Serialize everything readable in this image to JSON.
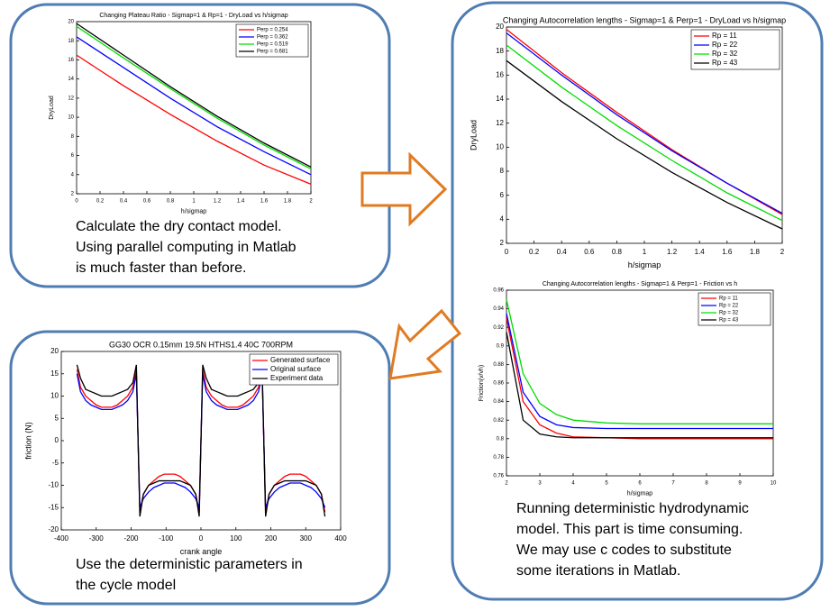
{
  "chart_data": [
    {
      "type": "line",
      "title": "Changing Plateau Ratio - Sigmap=1 & Rp=1 - DryLoad vs h/sigmap",
      "x_label": "h/sigmap",
      "y_label": "DryLoad",
      "x": [
        0,
        0.4,
        0.8,
        1.2,
        1.6,
        2
      ],
      "xlim": [
        0,
        2
      ],
      "xticks": [
        0,
        0.2,
        0.4,
        0.6,
        0.8,
        1,
        1.2,
        1.4,
        1.6,
        1.8,
        2
      ],
      "ylim": [
        2,
        20
      ],
      "yticks": [
        2,
        4,
        6,
        8,
        10,
        12,
        14,
        16,
        18,
        20
      ],
      "legend": "upper right",
      "series": [
        {
          "name": "Perp = 0.254",
          "color": "#ff0000",
          "values": [
            16.5,
            13.3,
            10.3,
            7.5,
            5.0,
            3.0
          ]
        },
        {
          "name": "Perp = 0.362",
          "color": "#0000ff",
          "values": [
            18.4,
            15.2,
            12.0,
            9.0,
            6.4,
            4.0
          ]
        },
        {
          "name": "Perp = 0.519",
          "color": "#00dd00",
          "values": [
            19.5,
            16.2,
            13.0,
            9.9,
            7.1,
            4.6
          ]
        },
        {
          "name": "Perp = 0.681",
          "color": "#000000",
          "values": [
            19.8,
            16.5,
            13.2,
            10.1,
            7.3,
            4.8
          ]
        }
      ]
    },
    {
      "type": "line",
      "title": "Changing Autocorrelation lengths - Sigmap=1 & Perp=1 - DryLoad vs h/sigmap",
      "x_label": "h/sigmap",
      "y_label": "DryLoad",
      "x": [
        0,
        0.4,
        0.8,
        1.2,
        1.6,
        2
      ],
      "xlim": [
        0,
        2
      ],
      "xticks": [
        0,
        0.2,
        0.4,
        0.6,
        0.8,
        1,
        1.2,
        1.4,
        1.6,
        1.8,
        2
      ],
      "ylim": [
        2,
        20
      ],
      "yticks": [
        2,
        4,
        6,
        8,
        10,
        12,
        14,
        16,
        18,
        20
      ],
      "legend": "upper right",
      "series": [
        {
          "name": "Rp = 11",
          "color": "#ff0000",
          "values": [
            19.8,
            16.2,
            12.9,
            9.8,
            7.0,
            4.4
          ]
        },
        {
          "name": "Rp = 22",
          "color": "#0000ff",
          "values": [
            19.5,
            16.0,
            12.7,
            9.7,
            7.0,
            4.5
          ]
        },
        {
          "name": "Rp = 32",
          "color": "#00dd00",
          "values": [
            18.5,
            15.0,
            11.8,
            8.9,
            6.2,
            3.9
          ]
        },
        {
          "name": "Rp = 43",
          "color": "#000000",
          "values": [
            17.2,
            13.8,
            10.7,
            7.9,
            5.4,
            3.2
          ]
        }
      ]
    },
    {
      "type": "line",
      "title": "Changing Autocorrelation lengths - Sigmap=1 & Perp=1 - Friction vs h",
      "x_label": "h/sigmap",
      "y_label": "Friction(v/vh)",
      "x": [
        2,
        2.5,
        3,
        3.5,
        4,
        5,
        6,
        8,
        10
      ],
      "xlim": [
        2,
        10
      ],
      "xticks": [
        2,
        3,
        4,
        5,
        6,
        7,
        8,
        9,
        10
      ],
      "ylim": [
        0.76,
        0.96
      ],
      "yticks": [
        0.76,
        0.78,
        0.8,
        0.82,
        0.84,
        0.86,
        0.88,
        0.9,
        0.92,
        0.94,
        0.96
      ],
      "legend": "upper right",
      "series": [
        {
          "name": "Rp = 11",
          "color": "#ff0000",
          "values": [
            0.93,
            0.84,
            0.815,
            0.806,
            0.802,
            0.801,
            0.8,
            0.8,
            0.8
          ]
        },
        {
          "name": "Rp = 22",
          "color": "#0000ff",
          "values": [
            0.935,
            0.85,
            0.824,
            0.815,
            0.812,
            0.811,
            0.811,
            0.811,
            0.811
          ]
        },
        {
          "name": "Rp = 32",
          "color": "#00dd00",
          "values": [
            0.95,
            0.87,
            0.838,
            0.826,
            0.82,
            0.817,
            0.816,
            0.816,
            0.816
          ]
        },
        {
          "name": "Rp = 43",
          "color": "#000000",
          "values": [
            0.915,
            0.82,
            0.805,
            0.802,
            0.801,
            0.801,
            0.801,
            0.801,
            0.801
          ]
        }
      ]
    },
    {
      "type": "line",
      "title": "GG30 OCR 0.15mm 19.5N HTHS1.4 40C 700RPM",
      "x_label": "crank angle",
      "y_label": "friction (N)",
      "x": [
        -355,
        -345,
        -330,
        -315,
        -300,
        -285,
        -270,
        -255,
        -240,
        -225,
        -210,
        -195,
        -185,
        -175,
        -165,
        -150,
        -135,
        -120,
        -105,
        -90,
        -75,
        -60,
        -45,
        -30,
        -15,
        -5,
        5,
        15,
        30,
        45,
        60,
        75,
        90,
        105,
        120,
        135,
        150,
        165,
        175,
        185,
        195,
        210,
        225,
        240,
        255,
        270,
        285,
        300,
        315,
        330,
        345,
        355
      ],
      "xlim": [
        -400,
        400
      ],
      "xticks": [
        -400,
        -300,
        -200,
        -100,
        0,
        100,
        200,
        300,
        400
      ],
      "ylim": [
        -20,
        20
      ],
      "yticks": [
        -20,
        -15,
        -10,
        -5,
        0,
        5,
        10,
        15,
        20
      ],
      "legend": "upper right",
      "series": [
        {
          "name": "Generated surface",
          "color": "#ff0000",
          "values": [
            16,
            12,
            10,
            9,
            8,
            7.5,
            7.5,
            7.5,
            8,
            9,
            10,
            12,
            16,
            -16,
            -12,
            -10,
            -9,
            -8,
            -7.5,
            -7.5,
            -7.5,
            -8,
            -9,
            -10,
            -12,
            -16,
            16,
            12,
            10,
            9,
            8,
            7.5,
            7.5,
            7.5,
            8,
            9,
            10,
            12,
            16,
            -16,
            -12,
            -10,
            -9,
            -8,
            -7.5,
            -7.5,
            -7.5,
            -8,
            -9,
            -10,
            -12,
            -16
          ]
        },
        {
          "name": "Original surface",
          "color": "#0000ff",
          "values": [
            15,
            11,
            9,
            8,
            7.5,
            7,
            7,
            7,
            7.5,
            8,
            9,
            11,
            15,
            -15,
            -13,
            -11.5,
            -10.5,
            -10,
            -9.5,
            -9.5,
            -9.5,
            -10,
            -10.5,
            -11.5,
            -13,
            -15,
            15,
            11,
            9,
            8,
            7.5,
            7,
            7,
            7,
            7.5,
            8,
            9,
            11,
            15,
            -15,
            -13,
            -11.5,
            -10.5,
            -10,
            -9.5,
            -9.5,
            -9.5,
            -10,
            -10.5,
            -11.5,
            -13,
            -15
          ]
        },
        {
          "name": "Experiment data",
          "color": "#000000",
          "values": [
            17,
            14,
            11.5,
            11,
            10.5,
            10,
            10,
            10,
            10.5,
            11,
            11.5,
            13,
            17,
            -17,
            -12,
            -10,
            -9.5,
            -9,
            -9,
            -9,
            -9,
            -9,
            -9.5,
            -10,
            -12,
            -17,
            17,
            14,
            11.5,
            11,
            10.5,
            10,
            10,
            10,
            10.5,
            11,
            11.5,
            13,
            17,
            -17,
            -12,
            -10,
            -9.5,
            -9,
            -9,
            -9,
            -9,
            -9,
            -9.5,
            -10,
            -12,
            -17
          ]
        }
      ]
    }
  ],
  "captions": [
    [
      "Calculate the dry contact model.",
      "Using parallel computing in Matlab",
      "is much faster than before."
    ],
    [
      "Running deterministic hydrodynamic",
      "model. This part is time consuming.",
      "We may use c codes to substitute",
      "some iterations in Matlab."
    ],
    [
      "Use the deterministic parameters in",
      "the cycle model"
    ]
  ]
}
